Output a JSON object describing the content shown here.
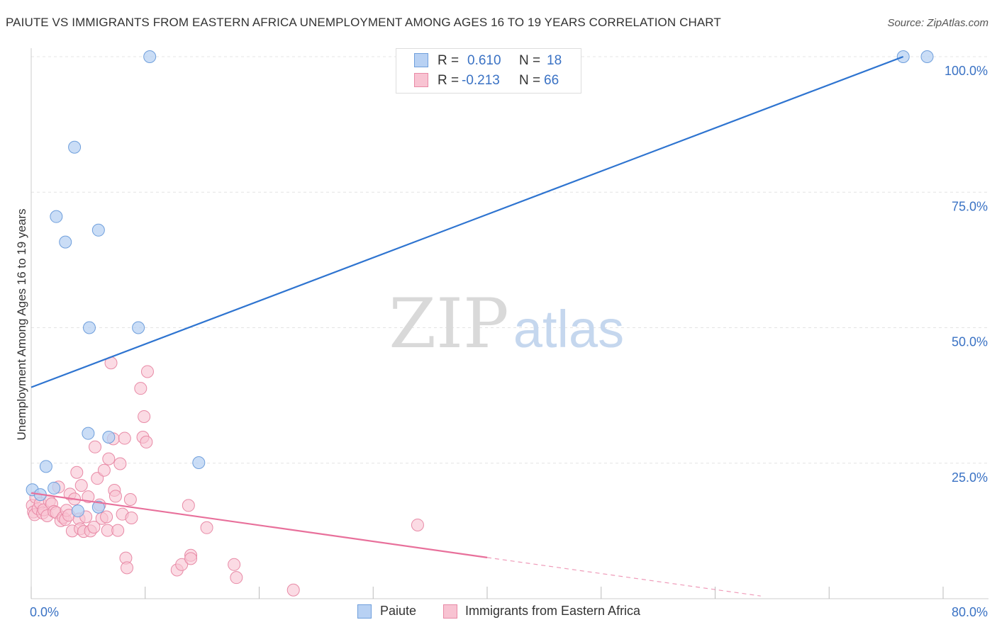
{
  "title": "PAIUTE VS IMMIGRANTS FROM EASTERN AFRICA UNEMPLOYMENT AMONG AGES 16 TO 19 YEARS CORRELATION CHART",
  "source": "Source: ZipAtlas.com",
  "watermark": {
    "zip": "ZIP",
    "atlas": "atlas"
  },
  "legend": {
    "r_label": "R =",
    "n_label": "N =",
    "paiute": {
      "r": "0.610",
      "n": "18"
    },
    "immigrants": {
      "r": "-0.213",
      "n": "66"
    }
  },
  "colors": {
    "paiute_fill": "#b8d1f3",
    "paiute_stroke": "#6f9fdc",
    "paiute_line": "#2e74d0",
    "immigrants_fill": "#f8c3d2",
    "immigrants_stroke": "#e88aa6",
    "immigrants_line": "#e8709b",
    "tick_label": "#3a72c4"
  },
  "chart_data": {
    "type": "scatter",
    "title": "PAIUTE VS IMMIGRANTS FROM EASTERN AFRICA UNEMPLOYMENT AMONG AGES 16 TO 19 YEARS CORRELATION CHART",
    "xlabel": "",
    "ylabel": "Unemployment Among Ages 16 to 19 years",
    "xlim": [
      0,
      80
    ],
    "ylim": [
      0,
      104
    ],
    "x_tick_labels": [
      "0.0%",
      "80.0%"
    ],
    "y_tick_labels": [
      "25.0%",
      "50.0%",
      "75.0%",
      "100.0%"
    ],
    "y_ticks": [
      25,
      50,
      75,
      100
    ],
    "grid": true,
    "series": [
      {
        "name": "Paiute",
        "points": [
          [
            0.1,
            20.1
          ],
          [
            0.8,
            19.2
          ],
          [
            1.3,
            24.4
          ],
          [
            2.0,
            20.4
          ],
          [
            2.2,
            70.5
          ],
          [
            3.0,
            65.8
          ],
          [
            3.8,
            83.3
          ],
          [
            4.1,
            16.2
          ],
          [
            5.0,
            30.5
          ],
          [
            5.1,
            50.0
          ],
          [
            5.9,
            68.0
          ],
          [
            5.9,
            16.9
          ],
          [
            6.8,
            29.8
          ],
          [
            9.4,
            50.0
          ],
          [
            10.4,
            100.0
          ],
          [
            14.7,
            25.1
          ],
          [
            76.5,
            100.0
          ],
          [
            78.6,
            100.0
          ]
        ],
        "trend": {
          "x": [
            0,
            76.5
          ],
          "y": [
            39.0,
            100.0
          ],
          "dashed_to": null
        }
      },
      {
        "name": "Immigrants from Eastern Africa",
        "points": [
          [
            0.1,
            17.2
          ],
          [
            0.2,
            16.0
          ],
          [
            0.3,
            15.5
          ],
          [
            0.4,
            18.7
          ],
          [
            0.6,
            16.6
          ],
          [
            0.8,
            17.6
          ],
          [
            1.0,
            15.8
          ],
          [
            1.1,
            16.4
          ],
          [
            1.4,
            15.3
          ],
          [
            1.6,
            18.0
          ],
          [
            1.8,
            17.5
          ],
          [
            2.0,
            16.1
          ],
          [
            2.2,
            15.9
          ],
          [
            2.4,
            20.6
          ],
          [
            2.6,
            14.4
          ],
          [
            2.8,
            15.0
          ],
          [
            3.0,
            14.6
          ],
          [
            3.1,
            16.3
          ],
          [
            3.3,
            15.4
          ],
          [
            3.4,
            19.3
          ],
          [
            3.6,
            12.5
          ],
          [
            3.8,
            18.4
          ],
          [
            4.0,
            23.3
          ],
          [
            4.2,
            14.7
          ],
          [
            4.3,
            12.9
          ],
          [
            4.4,
            20.9
          ],
          [
            4.6,
            12.4
          ],
          [
            4.8,
            15.1
          ],
          [
            5.0,
            18.8
          ],
          [
            5.2,
            12.5
          ],
          [
            5.5,
            13.2
          ],
          [
            5.6,
            28.0
          ],
          [
            5.8,
            22.2
          ],
          [
            6.0,
            17.3
          ],
          [
            6.2,
            14.8
          ],
          [
            6.4,
            23.7
          ],
          [
            6.6,
            15.1
          ],
          [
            6.7,
            12.6
          ],
          [
            6.8,
            25.8
          ],
          [
            7.0,
            43.5
          ],
          [
            7.2,
            29.5
          ],
          [
            7.3,
            20.0
          ],
          [
            7.4,
            18.9
          ],
          [
            7.6,
            12.6
          ],
          [
            7.8,
            24.9
          ],
          [
            8.0,
            15.6
          ],
          [
            8.2,
            29.6
          ],
          [
            8.3,
            7.5
          ],
          [
            8.4,
            5.7
          ],
          [
            8.7,
            18.3
          ],
          [
            8.8,
            14.9
          ],
          [
            9.6,
            38.8
          ],
          [
            9.8,
            29.8
          ],
          [
            9.9,
            33.6
          ],
          [
            10.1,
            28.9
          ],
          [
            10.2,
            41.9
          ],
          [
            12.8,
            5.3
          ],
          [
            13.2,
            6.3
          ],
          [
            13.8,
            17.2
          ],
          [
            14.0,
            8.0
          ],
          [
            14.0,
            7.4
          ],
          [
            15.4,
            13.1
          ],
          [
            17.8,
            6.3
          ],
          [
            18.0,
            3.9
          ],
          [
            23.0,
            1.6
          ],
          [
            33.9,
            13.6
          ]
        ],
        "trend": {
          "x": [
            0,
            40
          ],
          "y": [
            19.5,
            7.6
          ],
          "dashed_to": [
            64,
            0.5
          ]
        }
      }
    ]
  },
  "bottom_legend": {
    "paiute": "Paiute",
    "immigrants": "Immigrants from Eastern Africa"
  }
}
